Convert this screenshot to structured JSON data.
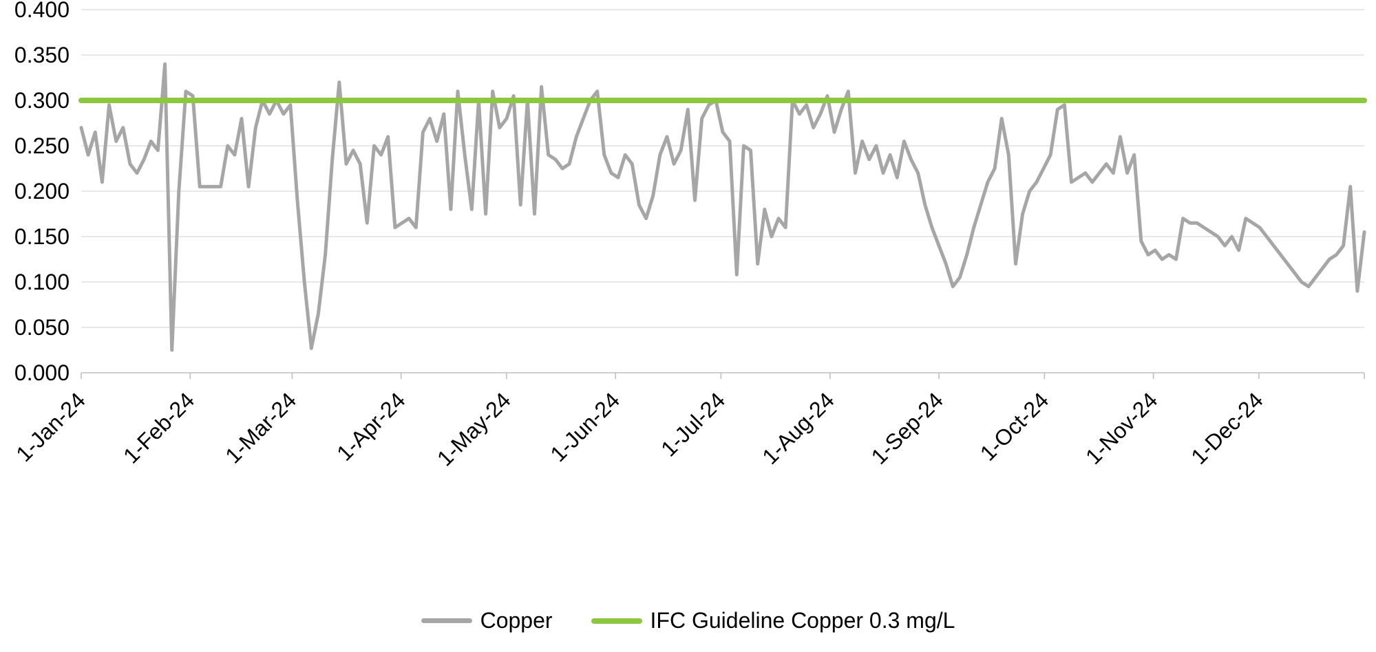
{
  "chart_data": {
    "type": "line",
    "title": "",
    "xlabel": "",
    "ylabel": "",
    "grid": "horizontal",
    "grid_color": "#D9D9D9",
    "axis_color": "#BFBFBF",
    "legend_position": "bottom",
    "ylim": [
      0.0,
      0.4
    ],
    "y_axis": {
      "min": 0.0,
      "max": 0.4,
      "step": 0.05,
      "tick_labels": [
        "0.000",
        "0.050",
        "0.100",
        "0.150",
        "0.200",
        "0.250",
        "0.300",
        "0.350",
        "0.400"
      ]
    },
    "x_axis": {
      "tick_labels": [
        "1-Jan-24",
        "1-Feb-24",
        "1-Mar-24",
        "1-Apr-24",
        "1-May-24",
        "1-Jun-24",
        "1-Jul-24",
        "1-Aug-24",
        "1-Sep-24",
        "1-Oct-24",
        "1-Nov-24",
        "1-Dec-24"
      ],
      "tick_day_of_year": [
        0,
        31,
        60,
        91,
        121,
        152,
        182,
        213,
        244,
        274,
        305,
        335
      ],
      "total_days": 365,
      "x_start": "1-Jan-24",
      "x_end": "31-Dec-24",
      "sample_interval_days": 2
    },
    "series": [
      {
        "name": "Copper",
        "color": "#A6A6A6",
        "stroke_width": 5,
        "values": [
          0.27,
          0.24,
          0.265,
          0.21,
          0.295,
          0.255,
          0.27,
          0.23,
          0.22,
          0.235,
          0.255,
          0.245,
          0.34,
          0.025,
          0.2,
          0.31,
          0.305,
          0.205,
          0.205,
          0.205,
          0.205,
          0.25,
          0.24,
          0.28,
          0.205,
          0.27,
          0.3,
          0.285,
          0.3,
          0.285,
          0.295,
          0.19,
          0.1,
          0.027,
          0.065,
          0.13,
          0.235,
          0.32,
          0.23,
          0.245,
          0.23,
          0.165,
          0.25,
          0.24,
          0.26,
          0.16,
          0.165,
          0.17,
          0.16,
          0.265,
          0.28,
          0.255,
          0.285,
          0.18,
          0.31,
          0.24,
          0.18,
          0.3,
          0.175,
          0.31,
          0.27,
          0.28,
          0.305,
          0.185,
          0.3,
          0.175,
          0.315,
          0.24,
          0.235,
          0.225,
          0.23,
          0.26,
          0.28,
          0.3,
          0.31,
          0.24,
          0.22,
          0.215,
          0.24,
          0.23,
          0.185,
          0.17,
          0.195,
          0.24,
          0.26,
          0.23,
          0.245,
          0.29,
          0.19,
          0.28,
          0.295,
          0.3,
          0.265,
          0.255,
          0.108,
          0.25,
          0.245,
          0.12,
          0.18,
          0.15,
          0.17,
          0.16,
          0.3,
          0.285,
          0.295,
          0.27,
          0.285,
          0.305,
          0.265,
          0.29,
          0.31,
          0.22,
          0.255,
          0.235,
          0.25,
          0.22,
          0.24,
          0.215,
          0.255,
          0.235,
          0.22,
          0.185,
          0.16,
          0.14,
          0.12,
          0.095,
          0.105,
          0.13,
          0.16,
          0.185,
          0.21,
          0.225,
          0.28,
          0.24,
          0.12,
          0.175,
          0.2,
          0.21,
          0.225,
          0.24,
          0.29,
          0.295,
          0.21,
          0.215,
          0.22,
          0.21,
          0.22,
          0.23,
          0.22,
          0.26,
          0.22,
          0.24,
          0.145,
          0.13,
          0.135,
          0.125,
          0.13,
          0.125,
          0.17,
          0.165,
          0.165,
          0.16,
          0.155,
          0.15,
          0.14,
          0.15,
          0.135,
          0.17,
          0.165,
          0.16,
          0.15,
          0.14,
          0.13,
          0.12,
          0.11,
          0.1,
          0.095,
          0.105,
          0.115,
          0.125,
          0.13,
          0.14,
          0.205,
          0.09,
          0.155
        ]
      },
      {
        "name": "IFC Guideline Copper 0.3 mg/L",
        "color": "#8DC63F",
        "stroke_width": 8,
        "constant": 0.3
      }
    ]
  }
}
